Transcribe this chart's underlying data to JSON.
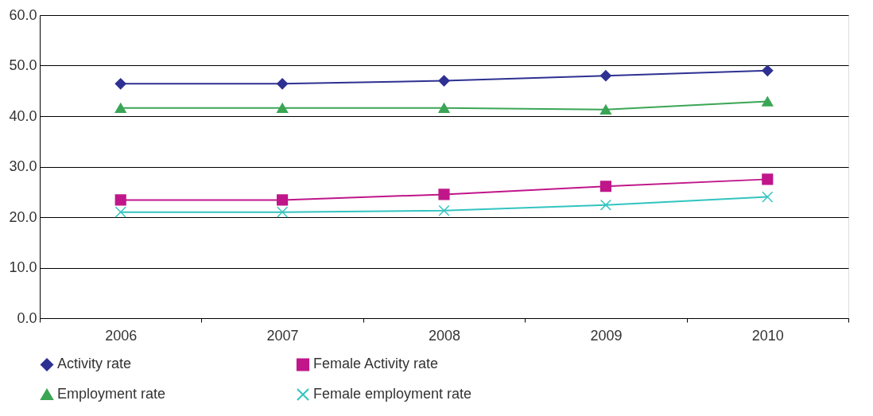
{
  "chart_data": {
    "type": "line",
    "categories": [
      "2006",
      "2007",
      "2008",
      "2009",
      "2010"
    ],
    "series": [
      {
        "name": "Activity rate",
        "color": "#2e3192",
        "marker": "diamond",
        "values": [
          46.4,
          46.4,
          47.0,
          48.0,
          49.0
        ]
      },
      {
        "name": "Female Activity rate",
        "color": "#c0168a",
        "marker": "square",
        "values": [
          23.4,
          23.4,
          24.5,
          26.1,
          27.5
        ]
      },
      {
        "name": "Employment rate",
        "color": "#3aa655",
        "marker": "triangle",
        "values": [
          41.6,
          41.6,
          41.6,
          41.3,
          42.9
        ]
      },
      {
        "name": "Female employment rate",
        "color": "#33c4c0",
        "marker": "cross",
        "values": [
          21.0,
          21.0,
          21.3,
          22.4,
          24.0
        ]
      }
    ],
    "ylim": [
      0,
      60
    ],
    "yticks": [
      {
        "value": 0,
        "label": "0.0"
      },
      {
        "value": 10,
        "label": "10.0"
      },
      {
        "value": 20,
        "label": "20.0"
      },
      {
        "value": 30,
        "label": "30.0"
      },
      {
        "value": 40,
        "label": "40.0"
      },
      {
        "value": 50,
        "label": "50.0"
      },
      {
        "value": 60,
        "label": "60.0"
      }
    ],
    "grid": "y",
    "legend": "bottom",
    "line_style": "solid"
  }
}
